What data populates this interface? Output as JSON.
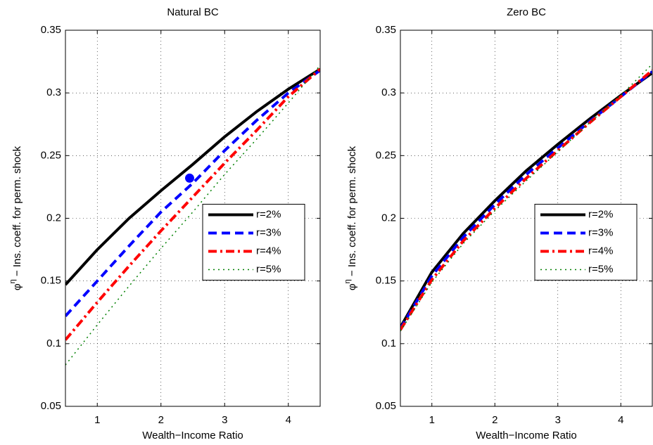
{
  "chart_data": [
    {
      "type": "line",
      "title": "Natural BC",
      "xlabel": "Wealth−Income Ratio",
      "ylabel_symbol": "φ",
      "ylabel_sup": "η",
      "ylabel": " − Ins. coeff. for perm. shock",
      "x": [
        0.5,
        1,
        1.5,
        2,
        2.5,
        3,
        3.5,
        4,
        4.5
      ],
      "xlim": [
        0.5,
        4.5
      ],
      "xticks": [
        1,
        2,
        3,
        4
      ],
      "ylim": [
        0.05,
        0.35
      ],
      "yticks": [
        0.05,
        0.1,
        0.15,
        0.2,
        0.25,
        0.3,
        0.35
      ],
      "grid": true,
      "legend": "east",
      "series": [
        {
          "name": "r=2%",
          "color": "#000000",
          "dash": "solid",
          "values": [
            0.147,
            0.175,
            0.2,
            0.222,
            0.243,
            0.265,
            0.285,
            0.303,
            0.319
          ]
        },
        {
          "name": "r=3%",
          "color": "#0000ff",
          "dash": "dashed",
          "values": [
            0.122,
            0.15,
            0.178,
            0.205,
            0.228,
            0.254,
            0.278,
            0.3,
            0.318
          ]
        },
        {
          "name": "r=4%",
          "color": "#ff0000",
          "dash": "dashdot",
          "values": [
            0.103,
            0.133,
            0.162,
            0.19,
            0.217,
            0.244,
            0.27,
            0.297,
            0.319
          ]
        },
        {
          "name": "r=5%",
          "color": "#008000",
          "dash": "dotted",
          "values": [
            0.083,
            0.115,
            0.146,
            0.176,
            0.205,
            0.235,
            0.263,
            0.292,
            0.322
          ]
        }
      ],
      "markers": [
        {
          "x": 2.45,
          "y": 0.232,
          "color": "#0000ff"
        }
      ]
    },
    {
      "type": "line",
      "title": "Zero BC",
      "xlabel": "Wealth−Income Ratio",
      "ylabel_symbol": "φ",
      "ylabel_sup": "η",
      "ylabel": " − Ins. coeff. for perm. shock",
      "x": [
        0.5,
        1,
        1.5,
        2,
        2.5,
        3,
        3.5,
        4,
        4.5
      ],
      "xlim": [
        0.5,
        4.5
      ],
      "xticks": [
        1,
        2,
        3,
        4
      ],
      "ylim": [
        0.05,
        0.35
      ],
      "yticks": [
        0.05,
        0.1,
        0.15,
        0.2,
        0.25,
        0.3,
        0.35
      ],
      "grid": true,
      "legend": "east",
      "series": [
        {
          "name": "r=2%",
          "color": "#000000",
          "dash": "solid",
          "values": [
            0.113,
            0.157,
            0.188,
            0.214,
            0.238,
            0.259,
            0.279,
            0.298,
            0.316
          ]
        },
        {
          "name": "r=3%",
          "color": "#0000ff",
          "dash": "dashed",
          "values": [
            0.112,
            0.154,
            0.185,
            0.211,
            0.235,
            0.256,
            0.277,
            0.297,
            0.317
          ]
        },
        {
          "name": "r=4%",
          "color": "#ff0000",
          "dash": "dashdot",
          "values": [
            0.111,
            0.151,
            0.182,
            0.208,
            0.232,
            0.254,
            0.276,
            0.297,
            0.318
          ]
        },
        {
          "name": "r=5%",
          "color": "#008000",
          "dash": "dotted",
          "values": [
            0.11,
            0.149,
            0.18,
            0.206,
            0.23,
            0.253,
            0.276,
            0.298,
            0.323
          ]
        }
      ],
      "markers": []
    }
  ]
}
